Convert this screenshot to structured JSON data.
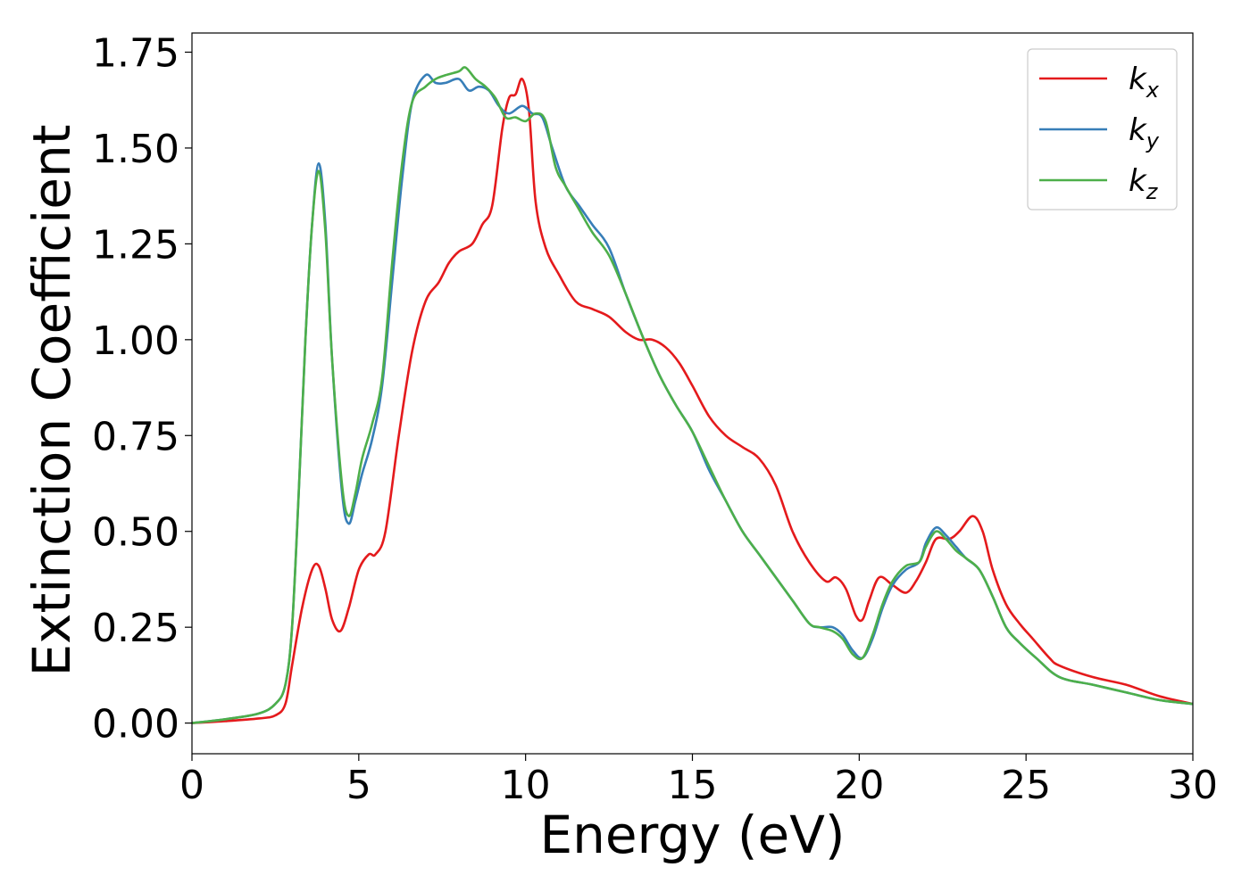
{
  "chart_data": {
    "type": "line",
    "title": "",
    "xlabel": "Energy (eV)",
    "ylabel": "Extinction Coefficient",
    "xlim": [
      0,
      30
    ],
    "ylim": [
      -0.08,
      1.8
    ],
    "xticks": [
      0,
      5,
      10,
      15,
      20,
      25,
      30
    ],
    "xtick_labels": [
      "0",
      "5",
      "10",
      "15",
      "20",
      "25",
      "30"
    ],
    "yticks": [
      0.0,
      0.25,
      0.5,
      0.75,
      1.0,
      1.25,
      1.5,
      1.75
    ],
    "ytick_labels": [
      "0.00",
      "0.25",
      "0.50",
      "0.75",
      "1.00",
      "1.25",
      "1.50",
      "1.75"
    ],
    "grid": false,
    "legend_position": "top-right",
    "series": [
      {
        "name": "k_x",
        "legend_main": "k",
        "legend_sub": "x",
        "color": "#e41a1c",
        "x": [
          0,
          1,
          2,
          2.5,
          2.8,
          3.0,
          3.3,
          3.6,
          3.8,
          4.0,
          4.2,
          4.45,
          4.7,
          5.0,
          5.3,
          5.5,
          5.8,
          6.2,
          6.6,
          7.0,
          7.4,
          7.7,
          8.0,
          8.4,
          8.7,
          9.0,
          9.3,
          9.5,
          9.7,
          9.9,
          10.1,
          10.3,
          10.6,
          11.0,
          11.5,
          12.0,
          12.5,
          13.0,
          13.4,
          13.8,
          14.2,
          14.6,
          15.0,
          15.5,
          16.0,
          16.5,
          17.0,
          17.5,
          18.0,
          18.5,
          19.0,
          19.3,
          19.6,
          19.9,
          20.1,
          20.3,
          20.6,
          21.0,
          21.4,
          21.7,
          22.0,
          22.3,
          22.7,
          23.0,
          23.4,
          23.7,
          24.0,
          24.4,
          24.8,
          25.2,
          25.7,
          26.0,
          27.0,
          28.0,
          29.0,
          30.0
        ],
        "y": [
          0.0,
          0.005,
          0.012,
          0.02,
          0.05,
          0.15,
          0.3,
          0.4,
          0.41,
          0.35,
          0.27,
          0.24,
          0.3,
          0.4,
          0.44,
          0.44,
          0.5,
          0.75,
          0.97,
          1.1,
          1.15,
          1.2,
          1.23,
          1.25,
          1.3,
          1.35,
          1.55,
          1.63,
          1.64,
          1.68,
          1.6,
          1.36,
          1.24,
          1.17,
          1.1,
          1.08,
          1.06,
          1.02,
          1.0,
          1.0,
          0.98,
          0.94,
          0.88,
          0.8,
          0.75,
          0.72,
          0.69,
          0.62,
          0.5,
          0.42,
          0.37,
          0.38,
          0.35,
          0.28,
          0.27,
          0.32,
          0.38,
          0.36,
          0.34,
          0.37,
          0.42,
          0.48,
          0.48,
          0.5,
          0.54,
          0.5,
          0.4,
          0.31,
          0.26,
          0.22,
          0.17,
          0.15,
          0.12,
          0.1,
          0.07,
          0.05
        ]
      },
      {
        "name": "k_y",
        "legend_main": "k",
        "legend_sub": "y",
        "color": "#377eb8",
        "x": [
          0,
          1,
          2,
          2.5,
          2.8,
          3.0,
          3.2,
          3.4,
          3.6,
          3.8,
          4.0,
          4.2,
          4.5,
          4.7,
          4.9,
          5.1,
          5.4,
          5.7,
          6.0,
          6.3,
          6.6,
          7.0,
          7.3,
          7.6,
          8.0,
          8.3,
          8.6,
          8.9,
          9.2,
          9.5,
          9.9,
          10.2,
          10.5,
          10.8,
          11.2,
          11.6,
          12.0,
          12.5,
          13.0,
          13.5,
          14.0,
          14.5,
          15.0,
          15.5,
          16.0,
          16.5,
          17.0,
          17.5,
          18.0,
          18.5,
          18.8,
          19.2,
          19.5,
          19.8,
          20.1,
          20.4,
          20.7,
          21.0,
          21.4,
          21.8,
          22.0,
          22.3,
          22.6,
          22.9,
          23.2,
          23.6,
          24.0,
          24.4,
          24.8,
          25.3,
          26.0,
          27.0,
          28.0,
          29.0,
          30.0
        ],
        "y": [
          0.0,
          0.01,
          0.025,
          0.05,
          0.1,
          0.25,
          0.6,
          1.0,
          1.3,
          1.46,
          1.3,
          0.95,
          0.6,
          0.52,
          0.58,
          0.65,
          0.74,
          0.88,
          1.15,
          1.42,
          1.62,
          1.69,
          1.67,
          1.67,
          1.68,
          1.65,
          1.66,
          1.65,
          1.61,
          1.59,
          1.61,
          1.59,
          1.58,
          1.5,
          1.4,
          1.35,
          1.3,
          1.24,
          1.12,
          1.01,
          0.91,
          0.83,
          0.76,
          0.66,
          0.58,
          0.5,
          0.44,
          0.38,
          0.32,
          0.26,
          0.25,
          0.25,
          0.23,
          0.19,
          0.17,
          0.22,
          0.3,
          0.36,
          0.4,
          0.42,
          0.47,
          0.51,
          0.49,
          0.46,
          0.43,
          0.4,
          0.33,
          0.25,
          0.21,
          0.17,
          0.12,
          0.1,
          0.08,
          0.06,
          0.05
        ]
      },
      {
        "name": "k_z",
        "legend_main": "k",
        "legend_sub": "z",
        "color": "#4daf4a",
        "x": [
          0,
          1,
          2,
          2.5,
          2.8,
          3.0,
          3.2,
          3.4,
          3.6,
          3.8,
          4.0,
          4.2,
          4.5,
          4.7,
          4.9,
          5.1,
          5.4,
          5.7,
          6.0,
          6.3,
          6.6,
          7.0,
          7.3,
          7.6,
          8.0,
          8.2,
          8.5,
          8.8,
          9.1,
          9.4,
          9.7,
          10.0,
          10.3,
          10.6,
          10.9,
          11.2,
          11.6,
          12.0,
          12.5,
          13.0,
          13.5,
          14.0,
          14.5,
          15.0,
          15.5,
          16.0,
          16.5,
          17.0,
          17.5,
          18.0,
          18.5,
          18.8,
          19.2,
          19.5,
          19.8,
          20.1,
          20.4,
          20.7,
          21.0,
          21.4,
          21.8,
          22.0,
          22.3,
          22.6,
          22.9,
          23.2,
          23.6,
          24.0,
          24.4,
          24.8,
          25.3,
          26.0,
          27.0,
          28.0,
          29.0,
          30.0
        ],
        "y": [
          0.0,
          0.01,
          0.025,
          0.05,
          0.1,
          0.25,
          0.6,
          1.0,
          1.3,
          1.44,
          1.28,
          0.95,
          0.62,
          0.54,
          0.6,
          0.69,
          0.78,
          0.9,
          1.2,
          1.46,
          1.62,
          1.66,
          1.68,
          1.69,
          1.7,
          1.71,
          1.68,
          1.66,
          1.63,
          1.58,
          1.58,
          1.57,
          1.59,
          1.57,
          1.45,
          1.4,
          1.34,
          1.28,
          1.22,
          1.12,
          1.01,
          0.91,
          0.83,
          0.76,
          0.67,
          0.58,
          0.5,
          0.44,
          0.38,
          0.32,
          0.26,
          0.25,
          0.24,
          0.22,
          0.18,
          0.17,
          0.23,
          0.31,
          0.37,
          0.41,
          0.42,
          0.46,
          0.5,
          0.48,
          0.45,
          0.43,
          0.4,
          0.33,
          0.25,
          0.21,
          0.17,
          0.12,
          0.1,
          0.08,
          0.06,
          0.05
        ]
      }
    ]
  }
}
